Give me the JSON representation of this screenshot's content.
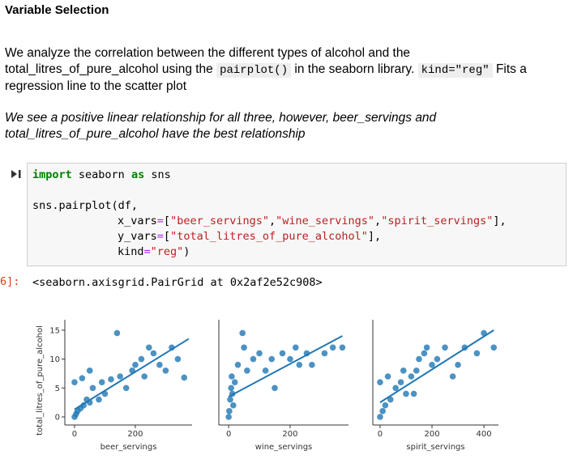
{
  "heading": "Variable Selection",
  "paragraph": [
    "We analyze the correlation between the different types of alcohol and the total_litres_of_pure_alcohol using the ",
    "pairplot()",
    " in the seaborn library. ",
    "kind=\"reg\"",
    " Fits a regression line to the scatter plot"
  ],
  "note": "We see a positive linear relationship for all three, however, beer_servings and total_litres_of_pure_alcohol have the best relationship",
  "code": {
    "lines": [
      [
        "import",
        " seaborn ",
        "as",
        " sns"
      ],
      [
        "sns.pairplot(df,"
      ],
      [
        "x_vars",
        "=",
        "[",
        "\"beer_servings\"",
        ",",
        "\"wine_servings\"",
        ",",
        "\"spirit_servings\"",
        "],"
      ],
      [
        "y_vars",
        "=",
        "[",
        "\"total_litres_of_pure_alcohol\"",
        "],"
      ],
      [
        "kind",
        "=",
        "\"reg\"",
        ")"
      ]
    ]
  },
  "output": {
    "prompt": "6]:",
    "text": "<seaborn.axisgrid.PairGrid at 0x2af2e52c908>"
  },
  "chart_data": [
    {
      "type": "scatter",
      "color": "#1f77b4",
      "xlabel": "beer_servings",
      "ylabel": "total_litres_of_pure_alcohol",
      "xlim": [
        -32,
        387
      ],
      "ylim": [
        -1.4,
        16.8
      ],
      "xticks": [
        0,
        200
      ],
      "yticks": [
        0,
        5,
        10,
        15
      ],
      "x": [
        0,
        5,
        10,
        20,
        30,
        40,
        50,
        60,
        80,
        90,
        100,
        120,
        140,
        150,
        170,
        190,
        200,
        220,
        230,
        245,
        260,
        280,
        300,
        320,
        340,
        361,
        0,
        25,
        50
      ],
      "values": [
        0,
        0.5,
        1,
        1.5,
        2,
        3,
        2.5,
        5,
        3,
        6,
        4,
        6.5,
        14.5,
        7,
        5,
        8,
        9,
        10,
        7,
        12,
        11,
        9,
        8,
        12,
        10,
        6.8,
        6,
        6.7,
        8
      ],
      "regression": {
        "x": [
          0,
          376
        ],
        "values": [
          1.3,
          13.5
        ]
      }
    },
    {
      "type": "scatter",
      "color": "#1f77b4",
      "xlabel": "wine_servings",
      "xlim": [
        -32,
        390
      ],
      "ylim": [
        -1.4,
        16.8
      ],
      "xticks": [
        0,
        200
      ],
      "x": [
        0,
        2,
        5,
        8,
        10,
        12,
        15,
        20,
        30,
        50,
        60,
        80,
        100,
        120,
        140,
        150,
        175,
        200,
        218,
        230,
        254,
        271,
        312,
        339,
        370,
        45
      ],
      "values": [
        0,
        1,
        3,
        5,
        7,
        4,
        2,
        6,
        9,
        12,
        8,
        10,
        11,
        8,
        10,
        5,
        11,
        10,
        12,
        9,
        11,
        9,
        11,
        12,
        12,
        14.5
      ],
      "regression": {
        "x": [
          0,
          370
        ],
        "values": [
          3.5,
          14
        ]
      }
    },
    {
      "type": "scatter",
      "color": "#1f77b4",
      "xlabel": "spirit_servings",
      "xlim": [
        -28,
        456
      ],
      "ylim": [
        -1.4,
        16.8
      ],
      "xticks": [
        0,
        200,
        400
      ],
      "x": [
        0,
        10,
        20,
        40,
        60,
        80,
        100,
        120,
        140,
        150,
        170,
        200,
        220,
        250,
        280,
        300,
        326,
        373,
        438,
        0,
        30,
        90,
        130,
        180,
        400
      ],
      "values": [
        0,
        1,
        2,
        3,
        5,
        6,
        4,
        7,
        8,
        10,
        11,
        9,
        10,
        12,
        7,
        9,
        12,
        11,
        12,
        6,
        7,
        8,
        4,
        12,
        14.5
      ],
      "regression": {
        "x": [
          0,
          438
        ],
        "values": [
          2.5,
          15
        ]
      }
    }
  ]
}
